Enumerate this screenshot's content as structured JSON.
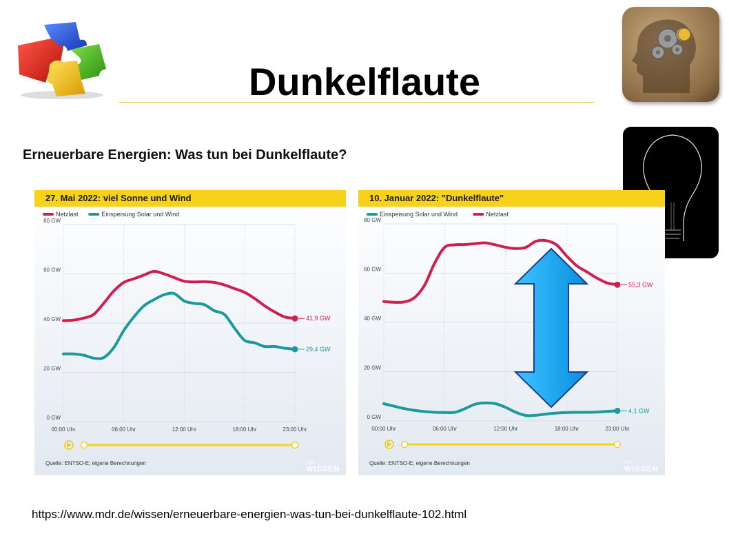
{
  "slide": {
    "title": "Dunkelflaute",
    "subtitle": "Erneuerbare Energien: Was tun bei Dunkelflaute?",
    "url": "https://www.mdr.de/wissen/erneuerbare-energien-was-tun-bei-dunkelflaute-102.html"
  },
  "images": {
    "puzzle": "puzzle-icon",
    "head": "head-gears-icon",
    "bulb": "light-bulb-icon",
    "arrow": "double-arrow-icon"
  },
  "colors": {
    "netzlast": "#cf1f4f",
    "einspeisung": "#1a9a9c",
    "yellow": "#f8d21a"
  },
  "chart_data": [
    {
      "type": "line",
      "title": "27. Mai 2022: viel Sonne und Wind",
      "x_ticks": [
        "00:00 Uhr",
        "06:00 Uhr",
        "12:00 Uhr",
        "18:00 Uhr",
        "23:00 Uhr"
      ],
      "y_ticks": [
        "0 GW",
        "20 GW",
        "40 GW",
        "60 GW",
        "80 GW"
      ],
      "ylim": [
        0,
        80
      ],
      "xlim": [
        0,
        23
      ],
      "grid": true,
      "legend_position": "top-left",
      "series": [
        {
          "name": "Netzlast",
          "color": "#cf1f4f",
          "end_label": "41,9 GW",
          "x": [
            0,
            1,
            2,
            3,
            4,
            5,
            6,
            7,
            8,
            9,
            10,
            11,
            12,
            13,
            14,
            15,
            16,
            17,
            18,
            19,
            20,
            21,
            22,
            23
          ],
          "y": [
            41,
            41.2,
            42,
            43.5,
            48,
            53,
            56.5,
            58,
            59.5,
            61,
            60,
            58.5,
            57,
            56.7,
            56.8,
            56.5,
            55.5,
            54,
            52.5,
            50,
            47,
            44.5,
            42.5,
            41.9
          ]
        },
        {
          "name": "Einspeisung Solar und Wind",
          "color": "#1a9a9c",
          "end_label": "29,4 GW",
          "x": [
            0,
            1,
            2,
            3,
            4,
            5,
            6,
            7,
            8,
            9,
            10,
            11,
            12,
            13,
            14,
            15,
            16,
            17,
            18,
            19,
            20,
            21,
            22,
            23
          ],
          "y": [
            27.5,
            27.5,
            27,
            25.8,
            26,
            30,
            37,
            42.5,
            47,
            49.5,
            51.5,
            52,
            49,
            48,
            47.5,
            45,
            43.5,
            38,
            33,
            32,
            30.5,
            30.5,
            29.8,
            29.4
          ]
        }
      ],
      "source": "Quelle: ENTSO-E; eigene Berechnungen",
      "brand": "WISSEN",
      "brand_small": "mdr"
    },
    {
      "type": "line",
      "title": "10. Januar 2022: \"Dunkelflaute\"",
      "x_ticks": [
        "00:00 Uhr",
        "06:00 Uhr",
        "12:00 Uhr",
        "18:00 Uhr",
        "23:00 Uhr"
      ],
      "y_ticks": [
        "0 GW",
        "20 GW",
        "40 GW",
        "60 GW",
        "80 GW"
      ],
      "ylim": [
        0,
        80
      ],
      "xlim": [
        0,
        23
      ],
      "grid": true,
      "legend_position": "top-left",
      "series": [
        {
          "name": "Einspeisung Solar und Wind",
          "color": "#1a9a9c",
          "end_label": "4,1 GW",
          "x": [
            0,
            1,
            2,
            3,
            4,
            5,
            6,
            7,
            8,
            9,
            10,
            11,
            12,
            13,
            14,
            15,
            16,
            17,
            18,
            19,
            20,
            21,
            22,
            23
          ],
          "y": [
            7,
            6,
            5,
            4.3,
            3.8,
            3.5,
            3.4,
            3.5,
            5,
            6.8,
            7.3,
            7,
            5.5,
            3.5,
            2.2,
            2.3,
            2.8,
            3.2,
            3.4,
            3.5,
            3.5,
            3.6,
            3.9,
            4.1
          ]
        },
        {
          "name": "Netzlast",
          "color": "#cf1f4f",
          "end_label": "55,3 GW",
          "x": [
            0,
            1,
            2,
            3,
            4,
            5,
            6,
            7,
            8,
            9,
            10,
            11,
            12,
            13,
            14,
            15,
            16,
            17,
            18,
            19,
            20,
            21,
            22,
            23
          ],
          "y": [
            48.5,
            48.2,
            48.3,
            50,
            55,
            64,
            70.5,
            71.5,
            71.6,
            72,
            72.3,
            71.5,
            70.5,
            70,
            70.5,
            73,
            73.2,
            71.5,
            67,
            63,
            60.5,
            58,
            56,
            55.3
          ]
        }
      ],
      "source": "Quelle: ENTSO-E; eigene Berechnungen",
      "brand": "WISSEN",
      "brand_small": "mdr"
    }
  ]
}
